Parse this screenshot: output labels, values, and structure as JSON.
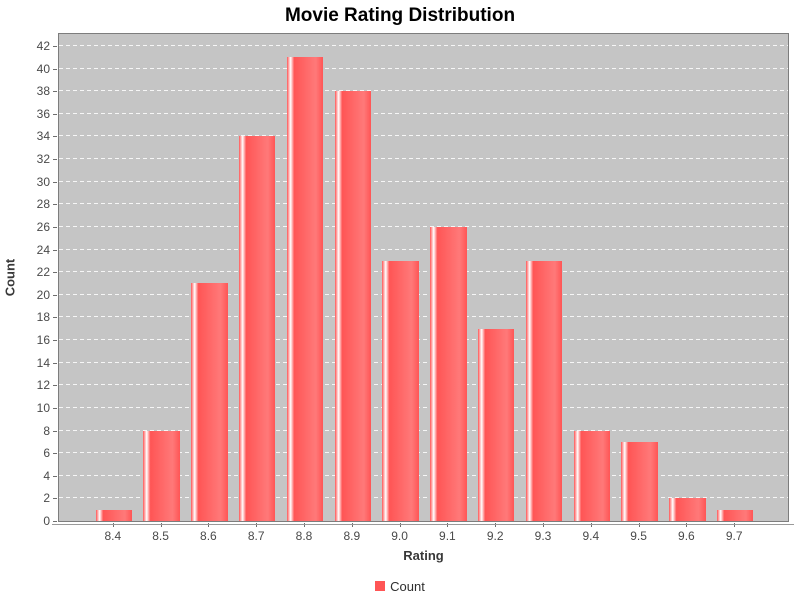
{
  "chart_data": {
    "type": "bar",
    "title": "Movie Rating Distribution",
    "xlabel": "Rating",
    "ylabel": "Count",
    "categories": [
      "8.4",
      "8.5",
      "8.6",
      "8.7",
      "8.8",
      "8.9",
      "9.0",
      "9.1",
      "9.2",
      "9.3",
      "9.4",
      "9.5",
      "9.6",
      "9.7"
    ],
    "series": [
      {
        "name": "Count",
        "values": [
          1,
          8,
          21,
          34,
          41,
          38,
          23,
          26,
          17,
          23,
          8,
          7,
          2,
          1
        ]
      }
    ],
    "ylim": [
      0,
      43.05
    ],
    "ytick_step": 2,
    "ytick_labels": [
      "0",
      "2",
      "4",
      "6",
      "8",
      "10",
      "12",
      "14",
      "16",
      "18",
      "20",
      "22",
      "24",
      "26",
      "28",
      "30",
      "32",
      "34",
      "36",
      "38",
      "40",
      "42"
    ],
    "grid": "horizontal dashed white, every 2 units",
    "legend_position": "bottom-center",
    "legend": [
      {
        "label": "Count",
        "color": "#FF5555"
      }
    ]
  },
  "colors": {
    "bar_base": "#FF5555",
    "bar_bright": "#FF7979",
    "bar_highlight": "#FFFFFF",
    "plot_background": "#C5C5C5",
    "gridline": "#FFFFFF",
    "plot_outline": "#7D7D7D",
    "page_background": "#FFFFFF",
    "title_text": "#000000",
    "tick_label_text": "#4A4A4A",
    "axis_label_text": "#383838"
  }
}
